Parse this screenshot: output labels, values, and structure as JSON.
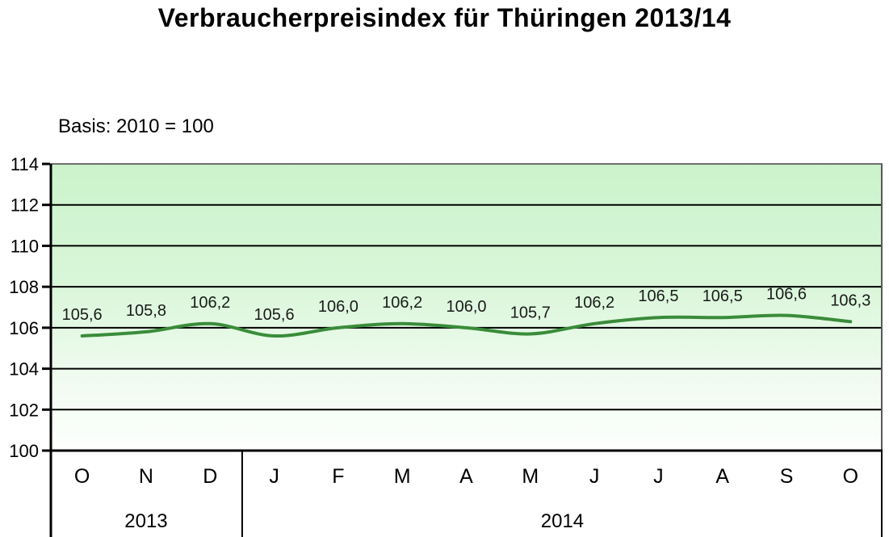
{
  "title": "Verbraucherpreisindex für Thüringen 2013/14",
  "basis_note": "Basis: 2010 = 100",
  "chart_data": {
    "type": "line",
    "title": "Verbraucherpreisindex für Thüringen 2013/14",
    "subtitle": "Basis: 2010 = 100",
    "categories": [
      "O",
      "N",
      "D",
      "J",
      "F",
      "M",
      "A",
      "M",
      "J",
      "J",
      "A",
      "S",
      "O"
    ],
    "values": [
      105.6,
      105.8,
      106.2,
      105.6,
      106.0,
      106.2,
      106.0,
      105.7,
      106.2,
      106.5,
      106.5,
      106.6,
      106.3
    ],
    "value_labels": [
      "105,6",
      "105,8",
      "106,2",
      "105,6",
      "106,0",
      "106,2",
      "106,0",
      "105,7",
      "106,2",
      "106,5",
      "106,5",
      "106,6",
      "106,3"
    ],
    "year_groups": [
      {
        "label": "2013",
        "span": 3
      },
      {
        "label": "2014",
        "span": 10
      }
    ],
    "xlabel": "",
    "ylabel": "",
    "ylim": [
      100,
      114
    ],
    "yticks": [
      100,
      102,
      104,
      106,
      108,
      110,
      112,
      114
    ],
    "grid": true,
    "legend": "none",
    "line_color": "#3a8c3a",
    "grid_color": "#000000",
    "axis_color": "#000000",
    "plot_border_top_color": "#6e6e6e",
    "plot_border_right_color": "#595959",
    "plot_bg_top": "#cbf3cb",
    "plot_bg_bottom": "#fdfffd",
    "label_color": "#1a1a1a"
  }
}
